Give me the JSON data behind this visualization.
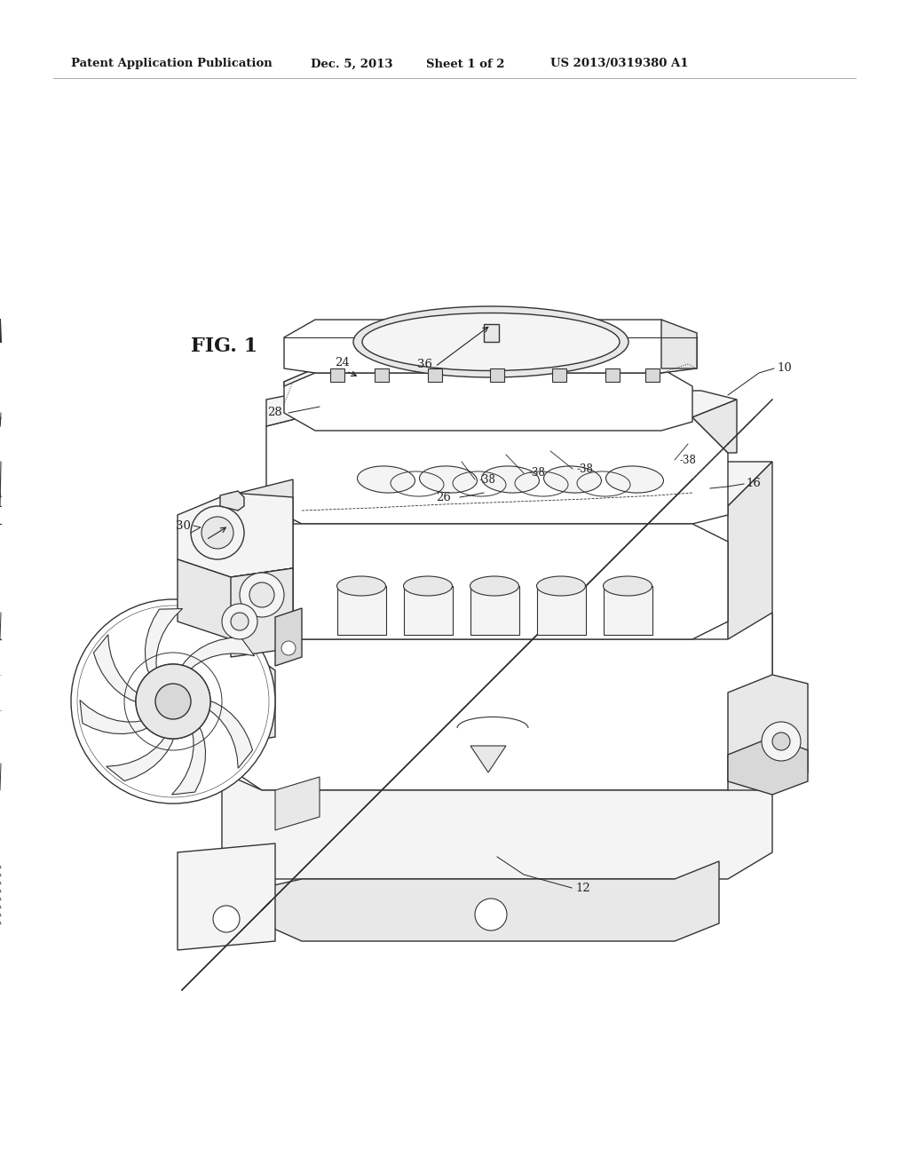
{
  "background_color": "#ffffff",
  "header_text": "Patent Application Publication",
  "header_date": "Dec. 5, 2013",
  "header_sheet": "Sheet 1 of 2",
  "header_patent": "US 2013/0319380 A1",
  "figure_label": "FIG. 1",
  "page_width": 10.24,
  "page_height": 13.2,
  "ec": "#333333",
  "fc_light": "#f8f8f8",
  "fc_mid": "#e8e8e8",
  "fc_dark": "#d0d0d0",
  "fc_darker": "#b8b8b8"
}
